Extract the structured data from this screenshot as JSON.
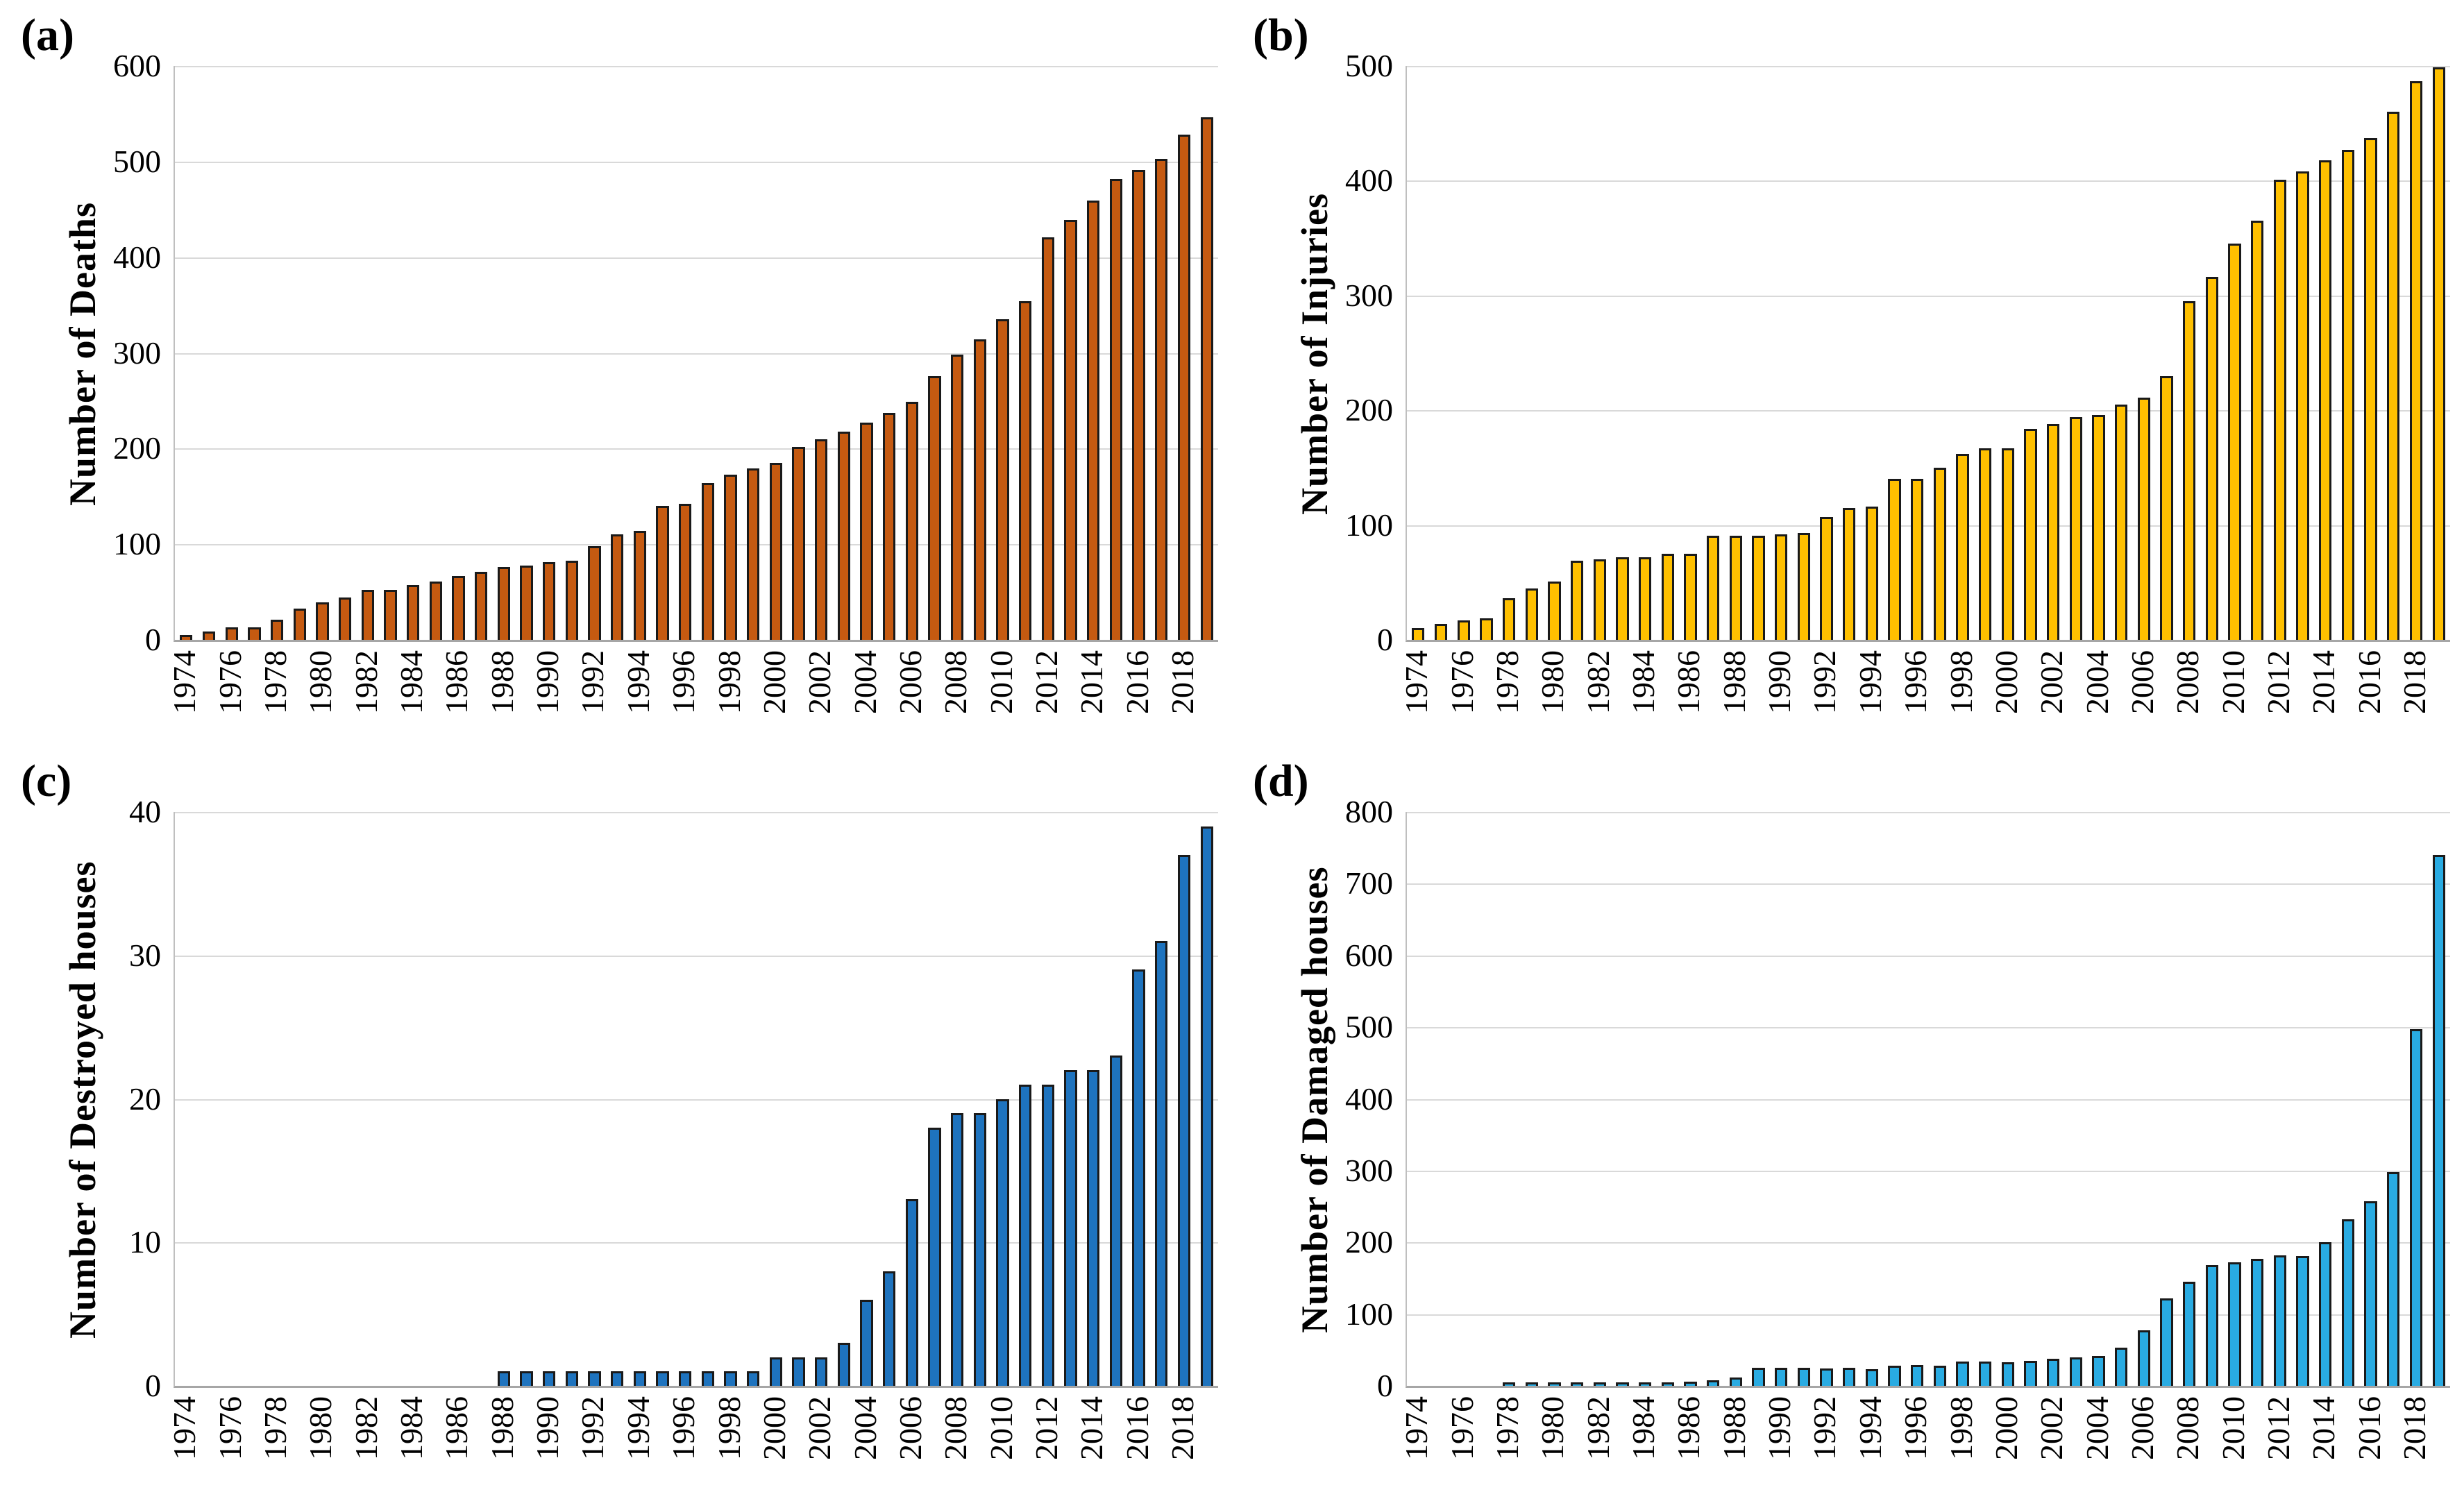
{
  "figure": {
    "background": "#FFFFFF",
    "grid_color": "#D9D9D9",
    "axis_color": "#A6A6A6",
    "bar_outline_color": "#1A1A1A",
    "layout": "2x2 grid of annual cumulative bar charts, years 1974-2019"
  },
  "chart_data": [
    {
      "type": "bar",
      "panel_label": "(a)",
      "title": "",
      "xlabel": "",
      "ylabel": "Number of Deaths",
      "ylim": [
        0,
        600
      ],
      "ytick_step": 100,
      "yticks": [
        0,
        100,
        200,
        300,
        400,
        500,
        600
      ],
      "grid": "horizontal",
      "legend": "none",
      "bar_color": "#C55A11",
      "xtick_interval": 2,
      "xtick_first": 1974,
      "xtick_last": 2018,
      "x": [
        1974,
        1975,
        1976,
        1977,
        1978,
        1979,
        1980,
        1981,
        1982,
        1983,
        1984,
        1985,
        1986,
        1987,
        1988,
        1989,
        1990,
        1991,
        1992,
        1993,
        1994,
        1995,
        1996,
        1997,
        1998,
        1999,
        2000,
        2001,
        2002,
        2003,
        2004,
        2005,
        2006,
        2007,
        2008,
        2009,
        2010,
        2011,
        2012,
        2013,
        2014,
        2015,
        2016,
        2017,
        2018,
        2019
      ],
      "values": [
        5,
        9,
        13,
        13,
        21,
        33,
        39,
        44,
        52,
        52,
        57,
        61,
        67,
        71,
        76,
        78,
        81,
        83,
        98,
        110,
        114,
        140,
        142,
        164,
        173,
        179,
        185,
        202,
        210,
        218,
        227,
        237,
        249,
        276,
        298,
        314,
        335,
        354,
        421,
        439,
        459,
        482,
        491,
        503,
        528,
        546
      ]
    },
    {
      "type": "bar",
      "panel_label": "(b)",
      "title": "",
      "xlabel": "",
      "ylabel": "Number of Injuries",
      "ylim": [
        0,
        500
      ],
      "ytick_step": 100,
      "yticks": [
        0,
        100,
        200,
        300,
        400,
        500
      ],
      "grid": "horizontal",
      "legend": "none",
      "bar_color": "#FFC000",
      "xtick_interval": 2,
      "xtick_first": 1974,
      "xtick_last": 2018,
      "x": [
        1974,
        1975,
        1976,
        1977,
        1978,
        1979,
        1980,
        1981,
        1982,
        1983,
        1984,
        1985,
        1986,
        1987,
        1988,
        1989,
        1990,
        1991,
        1992,
        1993,
        1994,
        1995,
        1996,
        1997,
        1998,
        1999,
        2000,
        2001,
        2002,
        2003,
        2004,
        2005,
        2006,
        2007,
        2008,
        2009,
        2010,
        2011,
        2012,
        2013,
        2014,
        2015,
        2016,
        2017,
        2018,
        2019
      ],
      "values": [
        10,
        14,
        17,
        19,
        36,
        45,
        51,
        69,
        70,
        72,
        72,
        75,
        75,
        91,
        91,
        91,
        92,
        93,
        107,
        115,
        116,
        140,
        140,
        150,
        162,
        167,
        167,
        184,
        188,
        194,
        196,
        205,
        211,
        230,
        295,
        316,
        345,
        365,
        401,
        408,
        418,
        427,
        437,
        460,
        487,
        499
      ]
    },
    {
      "type": "bar",
      "panel_label": "(c)",
      "title": "",
      "xlabel": "",
      "ylabel": "Number of Destroyed houses",
      "ylim": [
        0,
        40
      ],
      "ytick_step": 10,
      "yticks": [
        0,
        10,
        20,
        30,
        40
      ],
      "grid": "horizontal",
      "legend": "none",
      "bar_color": "#1E73BE",
      "xtick_interval": 2,
      "xtick_first": 1974,
      "xtick_last": 2018,
      "x": [
        1974,
        1975,
        1976,
        1977,
        1978,
        1979,
        1980,
        1981,
        1982,
        1983,
        1984,
        1985,
        1986,
        1987,
        1988,
        1989,
        1990,
        1991,
        1992,
        1993,
        1994,
        1995,
        1996,
        1997,
        1998,
        1999,
        2000,
        2001,
        2002,
        2003,
        2004,
        2005,
        2006,
        2007,
        2008,
        2009,
        2010,
        2011,
        2012,
        2013,
        2014,
        2015,
        2016,
        2017,
        2018,
        2019
      ],
      "values": [
        0,
        0,
        0,
        0,
        0,
        0,
        0,
        0,
        0,
        0,
        0,
        0,
        0,
        0,
        1,
        1,
        1,
        1,
        1,
        1,
        1,
        1,
        1,
        1,
        1,
        1,
        2,
        2,
        2,
        3,
        6,
        8,
        13,
        18,
        19,
        19,
        20,
        21,
        21,
        22,
        22,
        23,
        29,
        31,
        37,
        39
      ]
    },
    {
      "type": "bar",
      "panel_label": "(d)",
      "title": "",
      "xlabel": "",
      "ylabel": "Number of Damaged houses",
      "ylim": [
        0,
        800
      ],
      "ytick_step": 100,
      "yticks": [
        0,
        100,
        200,
        300,
        400,
        500,
        600,
        700,
        800
      ],
      "grid": "horizontal",
      "legend": "none",
      "bar_color": "#29ABE2",
      "xtick_interval": 2,
      "xtick_first": 1974,
      "xtick_last": 2018,
      "x": [
        1974,
        1975,
        1976,
        1977,
        1978,
        1979,
        1980,
        1981,
        1982,
        1983,
        1984,
        1985,
        1986,
        1987,
        1988,
        1989,
        1990,
        1991,
        1992,
        1993,
        1994,
        1995,
        1996,
        1997,
        1998,
        1999,
        2000,
        2001,
        2002,
        2003,
        2004,
        2005,
        2006,
        2007,
        2008,
        2009,
        2010,
        2011,
        2012,
        2013,
        2014,
        2015,
        2016,
        2017,
        2018,
        2019
      ],
      "values": [
        0,
        0,
        0,
        0,
        3,
        3,
        5,
        5,
        5,
        5,
        5,
        5,
        6,
        8,
        12,
        25,
        25,
        25,
        24,
        25,
        23,
        28,
        29,
        28,
        34,
        34,
        33,
        35,
        38,
        40,
        42,
        53,
        77,
        122,
        145,
        168,
        172,
        177,
        182,
        181,
        200,
        232,
        257,
        298,
        497,
        740
      ]
    }
  ]
}
